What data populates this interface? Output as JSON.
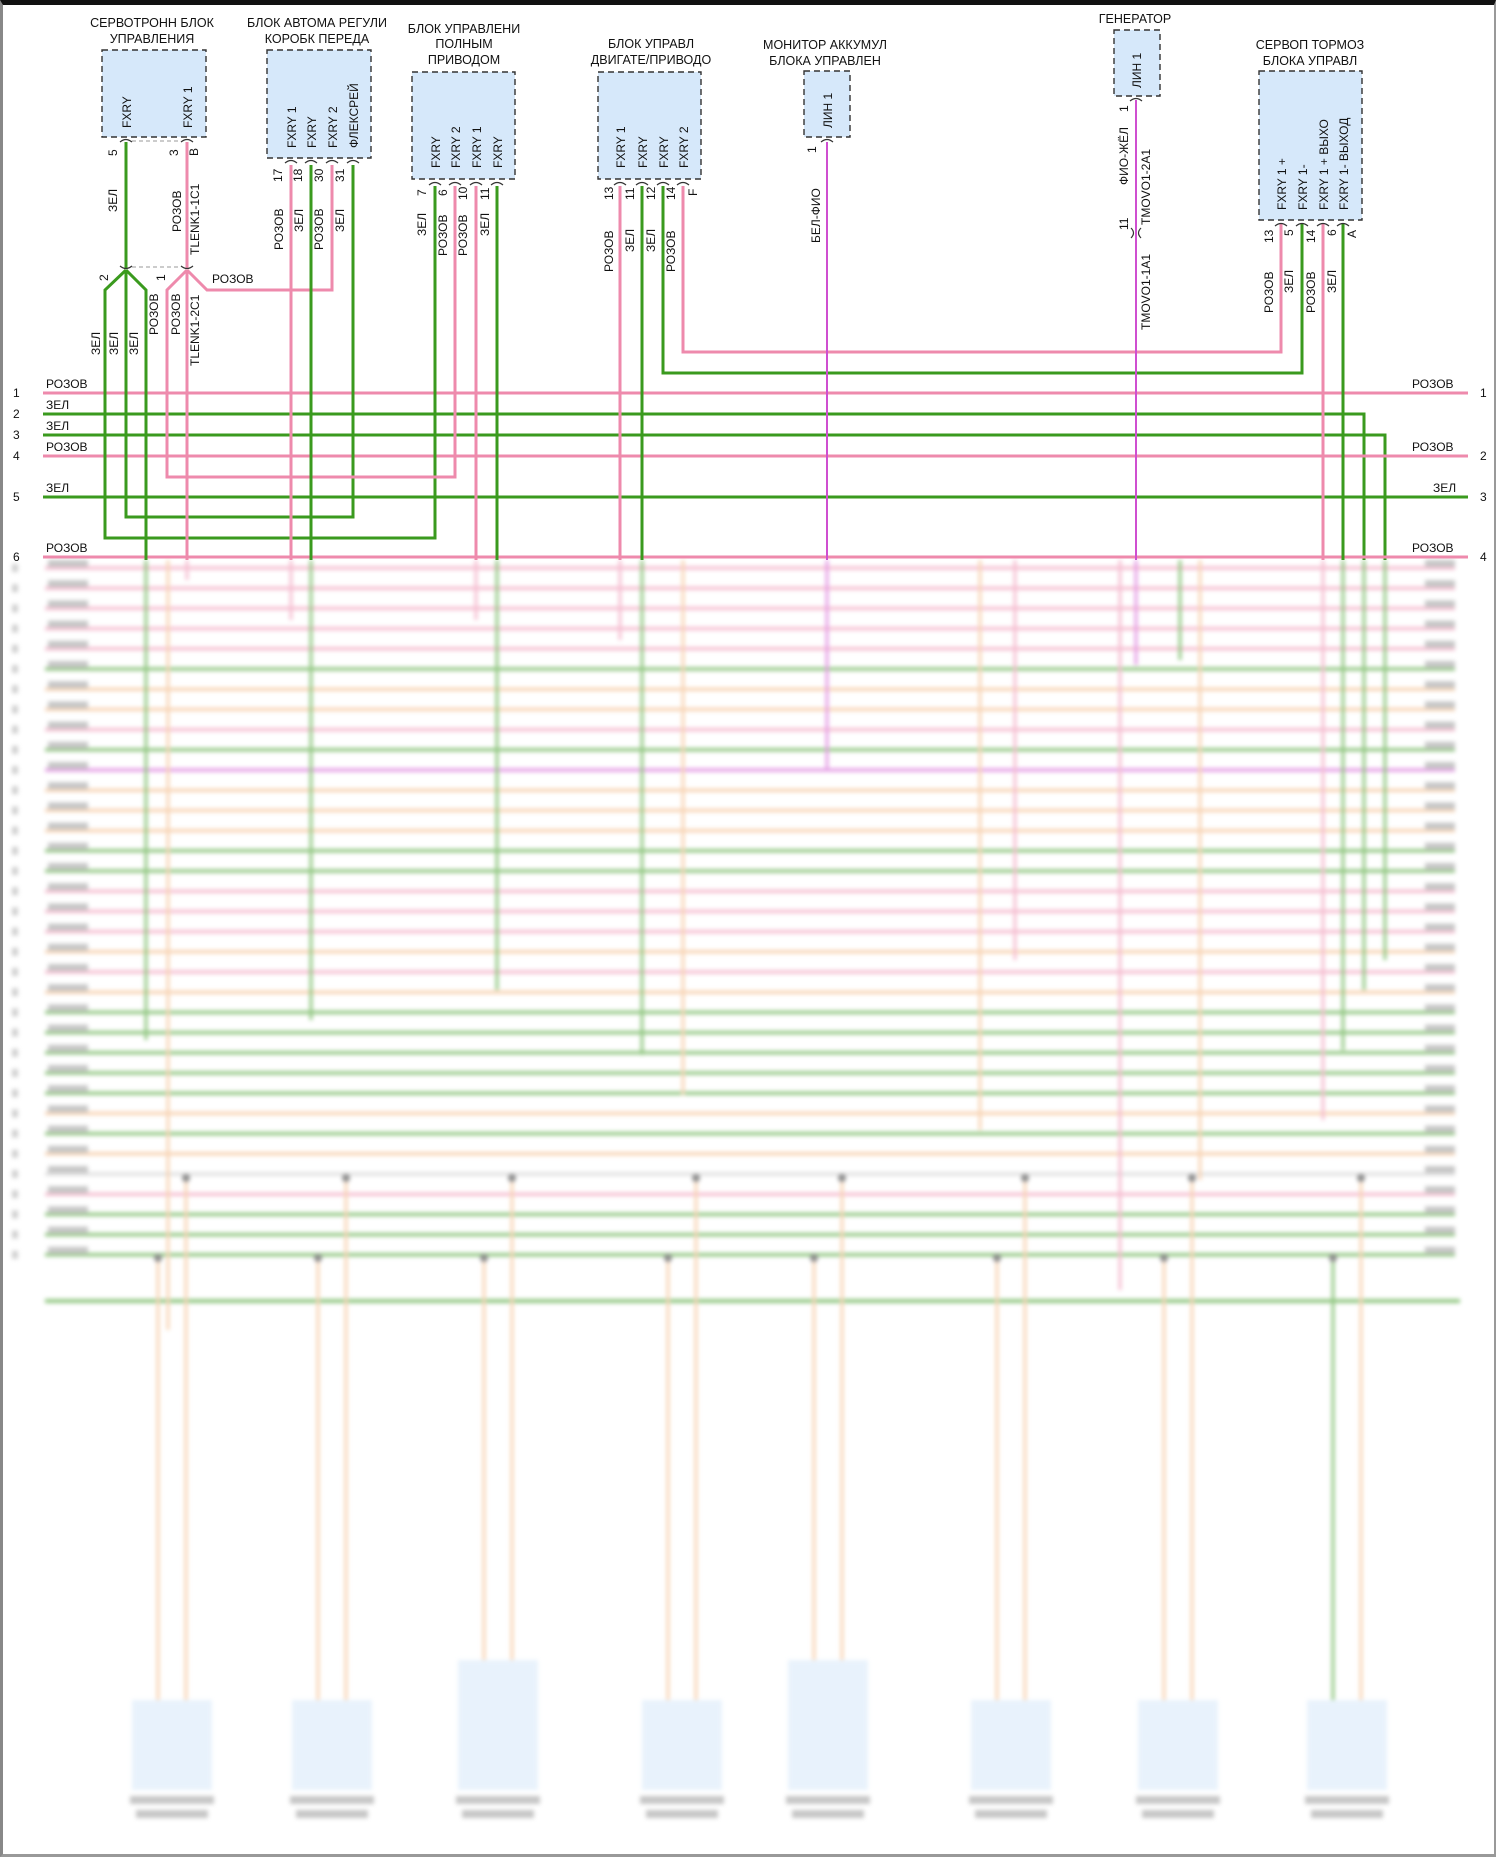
{
  "colors": {
    "pink": "#ee8aac",
    "green": "#3a9a1e",
    "violet": "#cf4fd0",
    "orange": "#f2b27a",
    "module_fill": "#d6e8fa"
  },
  "modules": [
    {
      "title": [
        "СЕРВОТРОНН БЛОК",
        "УПРАВЛЕНИЯ"
      ],
      "pins": [
        "FXRY",
        "FXRY 1"
      ],
      "pin_numbers": [
        "5",
        "3",
        "B"
      ],
      "wire_labels": [
        "ЗЕЛ",
        "РОЗОВ",
        "TLENK1-1C1"
      ]
    },
    {
      "title": [
        "БЛОК АВТОМА РЕГУЛИ",
        "КОРОБК ПЕРЕДА"
      ],
      "pins": [
        "FXRY 1",
        "FXRY",
        "FXRY 2",
        "ФЛЕКСРЕЙ"
      ],
      "pin_numbers": [
        "17",
        "18",
        "30",
        "31"
      ],
      "wire_labels": [
        "РОЗОВ",
        "ЗЕЛ",
        "РОЗОВ",
        "ЗЕЛ"
      ]
    },
    {
      "title": [
        "БЛОК УПРАВЛЕНИ",
        "ПОЛНЫМ",
        "ПРИВОДОМ"
      ],
      "pins": [
        "FXRY",
        "FXRY 2",
        "FXRY 1",
        "FXRY"
      ],
      "pin_numbers": [
        "7",
        "6",
        "10",
        "11"
      ],
      "wire_labels": [
        "ЗЕЛ",
        "РОЗОВ",
        "РОЗОВ",
        "ЗЕЛ"
      ]
    },
    {
      "title": [
        "БЛОК УПРАВЛ",
        "ДВИГАТЕ/ПРИВОДО"
      ],
      "pins": [
        "FXRY 1",
        "FXRY",
        "FXRY",
        "FXRY 2"
      ],
      "pin_numbers": [
        "13",
        "11",
        "12",
        "14",
        "F"
      ],
      "wire_labels": [
        "РОЗОВ",
        "ЗЕЛ",
        "ЗЕЛ",
        "РОЗОВ"
      ]
    },
    {
      "title": [
        "МОНИТОР АККУМУЛ",
        "БЛОКА УПРАВЛЕН"
      ],
      "pins": [
        "ЛИН 1"
      ],
      "pin_numbers": [
        "1"
      ],
      "wire_labels": [
        "БЕЛ-ФИО"
      ]
    },
    {
      "title": [
        "ГЕНЕРАТОР"
      ],
      "pins": [
        "ЛИН 1"
      ],
      "pin_numbers": [
        "1",
        "11"
      ],
      "wire_labels": [
        "ФИО-ЖЁЛ",
        "TMOVO1-2A1",
        "TMOVO1-1A1"
      ]
    },
    {
      "title": [
        "СЕРВОП ТОРМОЗ",
        "БЛОКА УПРАВЛ"
      ],
      "pins": [
        "FXRY 1 +",
        "FXRY 1-",
        "FXRY 1 + ВЫХО",
        "FXRY 1- ВЫХОД"
      ],
      "pin_numbers": [
        "13",
        "5",
        "14",
        "6",
        "A"
      ],
      "wire_labels": [
        "РОЗОВ",
        "ЗЕЛ",
        "РОЗОВ",
        "ЗЕЛ"
      ]
    }
  ],
  "splice": {
    "pin_numbers": [
      "2",
      "1"
    ],
    "branch_label": "РОЗОВ",
    "wire_labels": [
      "ЗЕЛ",
      "ЗЕЛ",
      "ЗЕЛ",
      "РОЗОВ",
      "РОЗОВ",
      "TLENK1-2C1"
    ]
  },
  "bus_left": [
    {
      "num": "1",
      "label": "РОЗОВ"
    },
    {
      "num": "2",
      "label": "ЗЕЛ"
    },
    {
      "num": "3",
      "label": "ЗЕЛ"
    },
    {
      "num": "4",
      "label": "РОЗОВ"
    },
    {
      "num": "5",
      "label": "ЗЕЛ"
    },
    {
      "num": "6",
      "label": "РОЗОВ"
    }
  ],
  "bus_right": [
    {
      "num": "1",
      "label": "РОЗОВ"
    },
    {
      "num": "2",
      "label": "РОЗОВ"
    },
    {
      "num": "3",
      "label": "ЗЕЛ"
    },
    {
      "num": "4",
      "label": "РОЗОВ"
    }
  ],
  "blurred_wire_colors": [
    "pink",
    "pink",
    "pink",
    "pink",
    "pink",
    "green",
    "orange",
    "orange",
    "pink",
    "green",
    "violet",
    "orange",
    "orange",
    "orange",
    "green",
    "green",
    "pink",
    "pink",
    "pink",
    "orange",
    "pink",
    "orange",
    "green",
    "green",
    "green",
    "green",
    "green",
    "orange",
    "green",
    "orange",
    "grey",
    "pink",
    "green",
    "green",
    "green"
  ]
}
